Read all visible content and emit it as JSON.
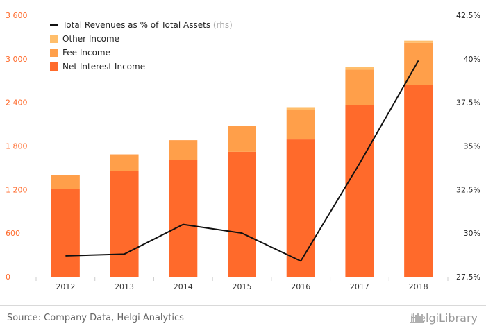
{
  "chart_data": {
    "type": "bar",
    "stacked": true,
    "categories": [
      "2012",
      "2013",
      "2014",
      "2015",
      "2016",
      "2017",
      "2018"
    ],
    "series": [
      {
        "name": "Net Interest Income",
        "type": "bar",
        "axis": "left",
        "color": "#ff6a2b",
        "values": [
          1210,
          1455,
          1605,
          1720,
          1890,
          2360,
          2640
        ]
      },
      {
        "name": "Fee Income",
        "type": "bar",
        "axis": "left",
        "color": "#ff9f4a",
        "values": [
          185,
          230,
          275,
          360,
          410,
          490,
          580
        ]
      },
      {
        "name": "Other Income",
        "type": "bar",
        "axis": "left",
        "color": "#ffbe6b",
        "values": [
          0,
          0,
          0,
          0,
          35,
          40,
          30
        ]
      },
      {
        "name": "Total Revenues as % of Total Assets",
        "name_suffix": "(rhs)",
        "type": "line",
        "axis": "right",
        "color": "#111111",
        "values": [
          28.7,
          28.8,
          30.5,
          30.0,
          28.4,
          34.0,
          39.9
        ]
      }
    ],
    "left_axis": {
      "ticks": [
        "0",
        "600",
        "1 200",
        "1 800",
        "2 400",
        "3 000",
        "3 600"
      ],
      "min": 0,
      "max": 3600,
      "color": "#ff6a2b"
    },
    "right_axis": {
      "ticks": [
        "27.5%",
        "30%",
        "32.5%",
        "35%",
        "37.5%",
        "40%",
        "42.5%"
      ],
      "min": 27.5,
      "max": 42.5
    },
    "legend_position": "top-left",
    "grid": false
  },
  "footer": {
    "source": "Source: Company Data, Helgi Analytics",
    "brand": "HelgiLibrary"
  }
}
